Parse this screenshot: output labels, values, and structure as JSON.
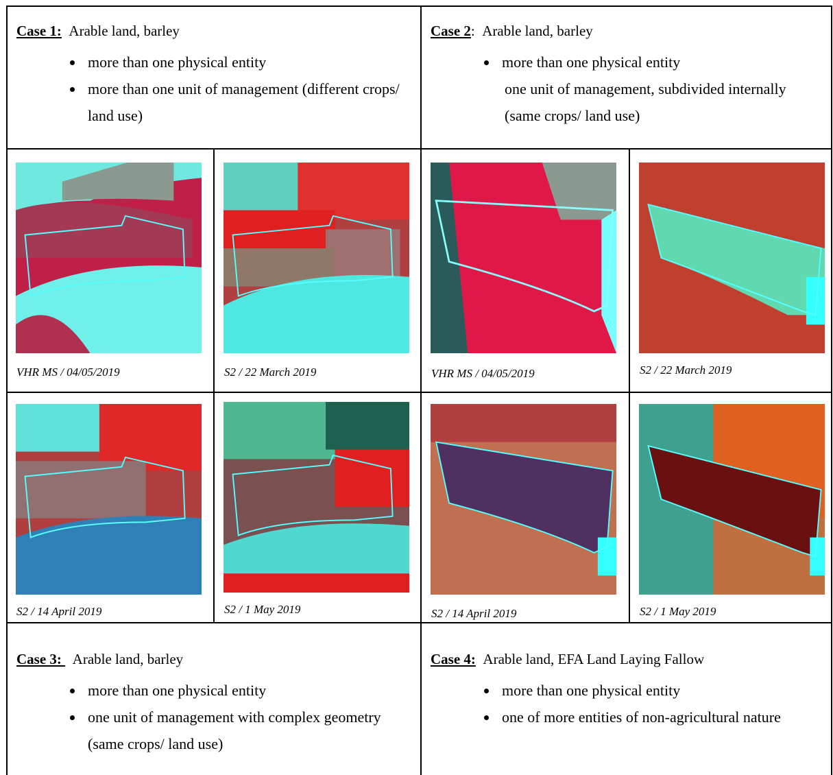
{
  "cases": [
    {
      "label": "Case 1:",
      "title": "Arable land, barley",
      "bullets": [
        "more than one physical entity",
        "more than one unit of management (different crops/ land use)"
      ]
    },
    {
      "label": "Case 2",
      "label_suffix": ":",
      "title": "Arable land, barley",
      "bullets": [
        "more than one physical entity"
      ],
      "note": "one unit of management, subdivided internally (same crops/ land use)"
    },
    {
      "label": "Case 3: ",
      "title": "Arable land, barley",
      "bullets": [
        "more than one physical entity",
        "one unit of management with complex geometry (same crops/ land use)"
      ]
    },
    {
      "label": "Case 4:",
      "title": "Arable land, EFA Land Laying Fallow",
      "bullets": [
        "more than one physical entity",
        "one of more entities of non-agricultural nature"
      ]
    }
  ],
  "image_rows": [
    {
      "captions": [
        "VHR MS / 04/05/2019",
        "S2 / 22 March 2019",
        "VHR MS / 04/05/2019",
        "S2 / 22 March 2019"
      ]
    },
    {
      "captions": [
        "S2 / 14 April 2019",
        "S2 / 1 May 2019",
        "S2 / 14 April 2019",
        "S2 / 1 May 2019"
      ]
    }
  ]
}
